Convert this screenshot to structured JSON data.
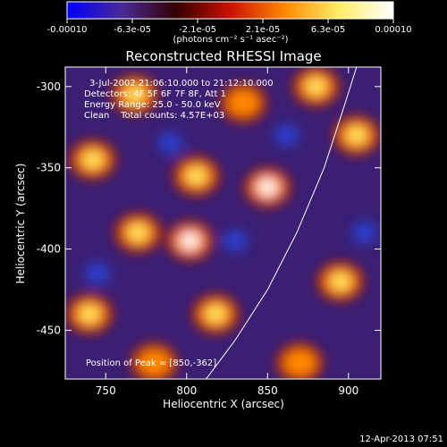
{
  "chart_data": {
    "type": "heatmap",
    "title": "Reconstructed RHESSI Image",
    "xlabel": "Heliocentric X (arcsec)",
    "ylabel": "Heliocentric Y (arcsec)",
    "xlim": [
      725,
      920
    ],
    "ylim": [
      -480,
      -288
    ],
    "x_ticks": [
      750,
      800,
      850,
      900
    ],
    "x_tick_labels": [
      "750",
      "800",
      "850",
      "900"
    ],
    "y_ticks": [
      -300,
      -350,
      -400,
      -450
    ],
    "y_tick_labels": [
      "-300",
      "-350",
      "-400",
      "-450"
    ],
    "colorbar": {
      "range": [
        -0.0001,
        0.0001
      ],
      "tick_labels": [
        "-0.00010",
        "-6.3e-05",
        "-2.1e-05",
        "2.1e-05",
        "6.3e-05",
        "0.00010"
      ],
      "unit_label": "(photons cm⁻² s⁻¹ asec⁻²)",
      "colormap": [
        "#0000ff",
        "#4a2a9a",
        "#330000",
        "#cc1100",
        "#ff8800",
        "#ffee66",
        "#ffffff"
      ]
    },
    "annotations": [
      "3-Jul-2002 21:06:10.000 to 21:12:10.000",
      "Detectors: 4F 5F 6F 7F 8F, Att 1",
      "Energy Range: 25.0 - 50.0 keV",
      "Clean    Total counts: 4.57E+03"
    ],
    "peak_label": "Position of Peak = [850,-362]",
    "peak": [
      850,
      -362
    ],
    "limb_curve": [
      [
        812,
        -480
      ],
      [
        830,
        -456
      ],
      [
        850,
        -425
      ],
      [
        868,
        -390
      ],
      [
        885,
        -350
      ],
      [
        898,
        -310
      ],
      [
        905,
        -288
      ]
    ],
    "bright_sources": [
      {
        "x": 802,
        "y": -395,
        "value": 0.0001
      },
      {
        "x": 850,
        "y": -362,
        "value": 0.0001
      },
      {
        "x": 768,
        "y": -305,
        "value": 8e-05
      },
      {
        "x": 742,
        "y": -345,
        "value": 7e-05
      },
      {
        "x": 770,
        "y": -390,
        "value": 8e-05
      },
      {
        "x": 806,
        "y": -355,
        "value": 6e-05
      },
      {
        "x": 818,
        "y": -440,
        "value": 7e-05
      },
      {
        "x": 880,
        "y": -300,
        "value": 5e-05
      },
      {
        "x": 905,
        "y": -330,
        "value": 8e-05
      },
      {
        "x": 895,
        "y": -420,
        "value": 6e-05
      },
      {
        "x": 740,
        "y": -440,
        "value": 5e-05
      },
      {
        "x": 870,
        "y": -470,
        "value": 4e-05
      },
      {
        "x": 780,
        "y": -470,
        "value": 3e-05
      },
      {
        "x": 835,
        "y": -310,
        "value": 4e-05
      }
    ],
    "dark_sources": [
      {
        "x": 790,
        "y": -335,
        "value": -4e-05
      },
      {
        "x": 745,
        "y": -415,
        "value": -3e-05
      },
      {
        "x": 830,
        "y": -395,
        "value": -3e-05
      },
      {
        "x": 862,
        "y": -330,
        "value": -2e-05
      },
      {
        "x": 910,
        "y": -390,
        "value": -3e-05
      }
    ]
  },
  "footer": {
    "timestamp": "12-Apr-2013 07:51"
  }
}
